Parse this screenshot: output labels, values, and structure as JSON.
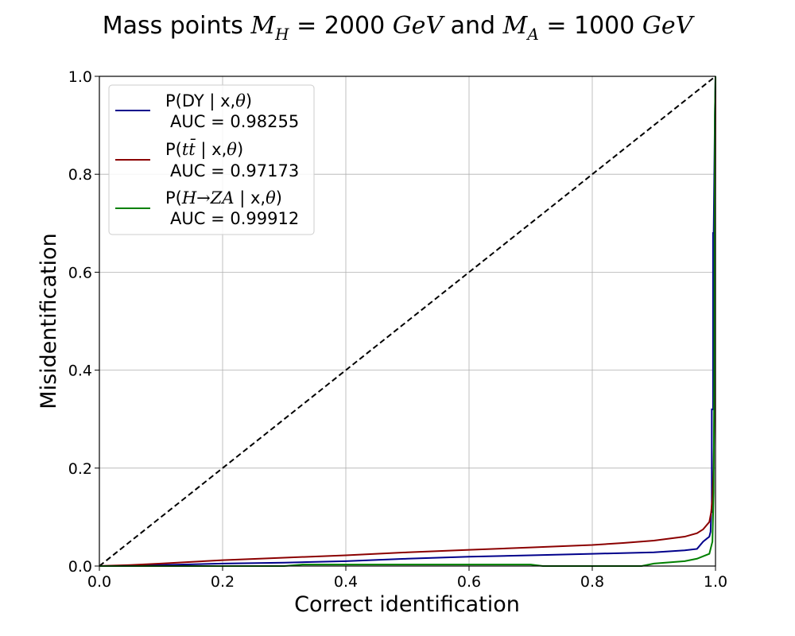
{
  "chart_data": {
    "type": "line",
    "title": "Mass points M_H = 2000 GeV and M_A = 1000 GeV",
    "title_parts": {
      "prefix": "Mass points ",
      "mh_sym": "M",
      "mh_sub": "H",
      "mh_eq": " = 2000 ",
      "mh_unit": "GeV",
      "conj": " and ",
      "ma_sym": "M",
      "ma_sub": "A",
      "ma_eq": " = 1000 ",
      "ma_unit": "GeV"
    },
    "xlabel": "Correct identification",
    "ylabel": "Misidentification",
    "xlim": [
      0.0,
      1.0
    ],
    "ylim": [
      0.0,
      1.0
    ],
    "xticks": [
      "0.0",
      "0.2",
      "0.4",
      "0.6",
      "0.8",
      "1.0"
    ],
    "yticks": [
      "0.0",
      "0.2",
      "0.4",
      "0.6",
      "0.8",
      "1.0"
    ],
    "grid": true,
    "legend_position": "top-left",
    "diagonal": {
      "x": [
        0.0,
        1.0
      ],
      "y": [
        0.0,
        1.0
      ],
      "color": "#000000",
      "style": "dashed"
    },
    "series": [
      {
        "name": "P(DY | x,θ)",
        "name_parts": {
          "pre": "P(DY | x,",
          "theta": "θ",
          "post": ")"
        },
        "auc_label": "AUC = 0.98255",
        "color": "#00008b",
        "x": [
          0.0,
          0.05,
          0.1,
          0.2,
          0.3,
          0.4,
          0.5,
          0.6,
          0.7,
          0.8,
          0.9,
          0.95,
          0.97,
          0.98,
          0.99,
          0.992,
          0.993,
          0.994,
          0.994,
          0.996,
          0.996,
          0.997,
          0.998,
          0.999,
          1.0
        ],
        "y": [
          0.0,
          0.001,
          0.002,
          0.005,
          0.007,
          0.01,
          0.015,
          0.019,
          0.022,
          0.025,
          0.028,
          0.032,
          0.035,
          0.05,
          0.06,
          0.07,
          0.11,
          0.11,
          0.32,
          0.32,
          0.68,
          0.68,
          0.8,
          0.92,
          1.0
        ]
      },
      {
        "name": "P(tt̄ | x,θ)",
        "name_parts": {
          "pre": "P(",
          "tt": "tt̄",
          "mid": " | x,",
          "theta": "θ",
          "post": ")"
        },
        "auc_label": "AUC = 0.97173",
        "color": "#8b0000",
        "x": [
          0.0,
          0.05,
          0.1,
          0.2,
          0.3,
          0.4,
          0.5,
          0.6,
          0.7,
          0.8,
          0.85,
          0.9,
          0.95,
          0.97,
          0.98,
          0.99,
          0.993,
          0.995,
          0.997,
          0.998,
          0.999,
          1.0
        ],
        "y": [
          0.0,
          0.002,
          0.005,
          0.012,
          0.017,
          0.022,
          0.028,
          0.033,
          0.038,
          0.043,
          0.047,
          0.052,
          0.06,
          0.067,
          0.075,
          0.09,
          0.11,
          0.14,
          0.2,
          0.3,
          0.6,
          1.0
        ]
      },
      {
        "name": "P(H→ZA | x,θ)",
        "name_parts": {
          "pre": "P(",
          "hza": "H→ZA",
          "mid": " | x,",
          "theta": "θ",
          "post": ")"
        },
        "auc_label": "AUC = 0.99912",
        "color": "#008000",
        "x": [
          0.0,
          0.3,
          0.33,
          0.7,
          0.72,
          0.88,
          0.9,
          0.95,
          0.97,
          0.98,
          0.99,
          0.995,
          0.997,
          0.998,
          0.999,
          1.0
        ],
        "y": [
          0.0,
          0.0,
          0.003,
          0.003,
          0.0,
          0.0,
          0.005,
          0.01,
          0.015,
          0.02,
          0.025,
          0.05,
          0.15,
          0.4,
          0.92,
          1.0
        ]
      }
    ]
  }
}
